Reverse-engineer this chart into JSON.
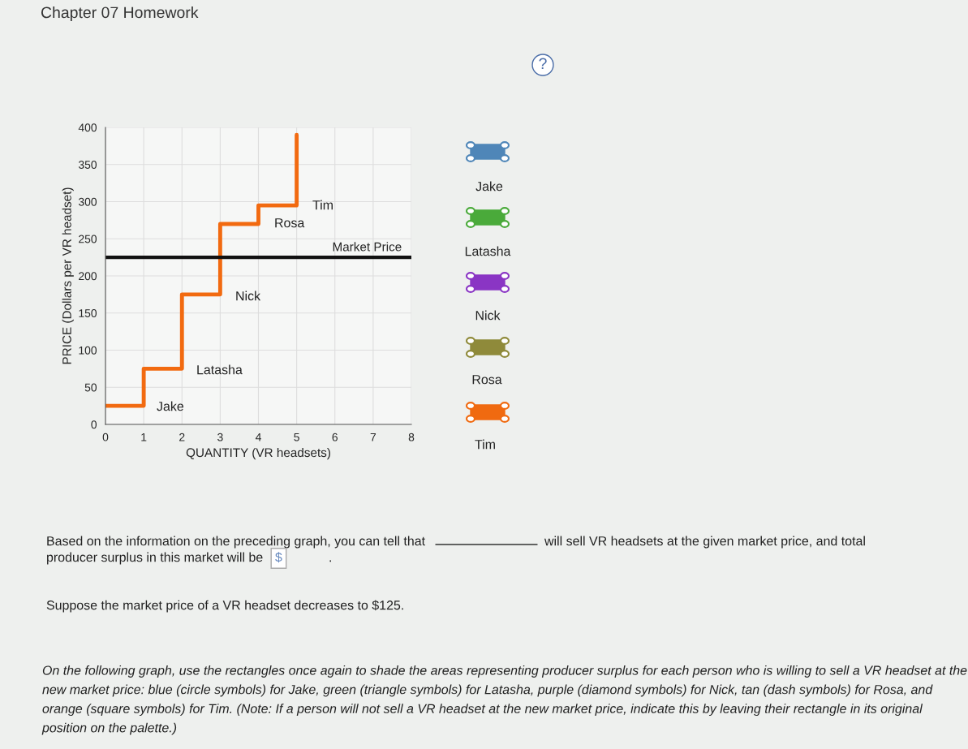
{
  "chart_data": {
    "type": "step",
    "title": "Chapter 07 Homework",
    "xlabel": "QUANTITY (VR headsets)",
    "ylabel": "PRICE (Dollars per VR headset)",
    "series": [
      {
        "color": "#f26a10",
        "x": [
          0,
          1,
          2,
          3,
          4,
          5,
          5
        ],
        "values": [
          25,
          75,
          175,
          270,
          295,
          295,
          390
        ]
      }
    ],
    "xlim": [
      0,
      8
    ],
    "ylim": [
      0,
      400
    ],
    "xticks": [
      0,
      1,
      2,
      3,
      4,
      5,
      6,
      7,
      8
    ],
    "yticks": [
      0,
      50,
      100,
      150,
      200,
      250,
      300,
      350,
      400
    ],
    "grid": true,
    "ref_lines": [
      {
        "axis": "y",
        "value": 225,
        "label": "Market Price",
        "color": "#111111"
      }
    ],
    "annotations": [
      "Jake",
      "Latasha",
      "Nick",
      "Rosa",
      "Tim",
      "Jake",
      "Latasha",
      "Nick",
      "Rosa",
      "Tim",
      "?",
      "Based on the information on the preceding graph, you can tell that",
      "will sell VR headsets at the given market price, and total",
      "producer surplus in this market will be",
      "$",
      ".",
      "Suppose the market price of a VR headset decreases to $125.",
      "On the following graph, use the rectangles once again to shade the areas representing producer surplus for each person who is willing to sell a VR headset at the new market price: blue (circle symbols) for Jake, green (triangle symbols) for Latasha, purple (diamond symbols) for Nick, tan (dash symbols) for Rosa, and orange (square symbols) for Tim. (Note: If a person will not sell a VR headset at the new market price, indicate this by leaving their rectangle in its original position on the palette.)"
    ]
  }
}
